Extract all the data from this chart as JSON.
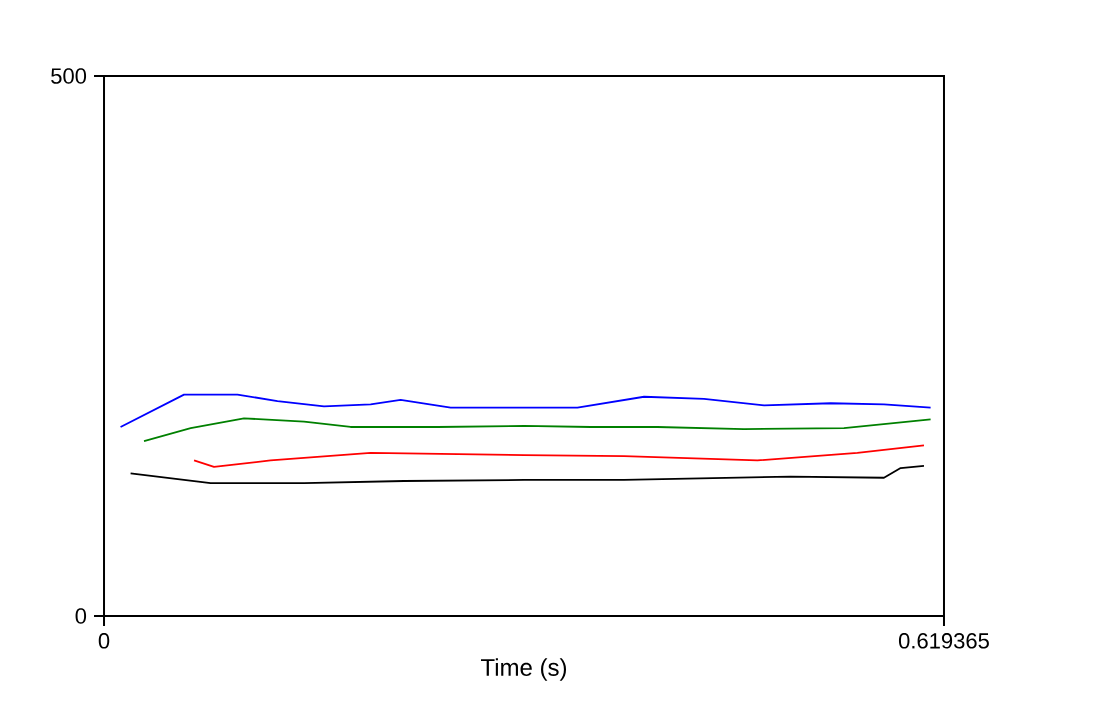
{
  "chart_data": {
    "type": "line",
    "xlabel": "Time (s)",
    "xlim": [
      0,
      0.619365
    ],
    "xticks": [
      0,
      0.619365
    ],
    "ylim": [
      0,
      500
    ],
    "yticks": [
      0,
      500
    ],
    "series": [
      {
        "color": "#0000ff",
        "x": [
          0.0122,
          0.059,
          0.0984,
          0.1279,
          0.1622,
          0.1966,
          0.2187,
          0.2556,
          0.3097,
          0.3491,
          0.3982,
          0.4424,
          0.4867,
          0.5358,
          0.5751,
          0.6095
        ],
        "values": [
          175,
          205,
          205,
          199,
          194,
          196,
          200,
          193,
          193,
          193,
          203,
          201,
          195,
          197,
          196,
          193
        ]
      },
      {
        "color": "#008000",
        "x": [
          0.0295,
          0.0639,
          0.1032,
          0.1475,
          0.1818,
          0.2458,
          0.3097,
          0.3588,
          0.408,
          0.4719,
          0.5456,
          0.6095
        ],
        "values": [
          162,
          174,
          183,
          180,
          175,
          175,
          176,
          175,
          175,
          173,
          174,
          182
        ]
      },
      {
        "color": "#ff0000",
        "x": [
          0.0664,
          0.0811,
          0.1228,
          0.1966,
          0.3097,
          0.3834,
          0.4818,
          0.5555,
          0.6046
        ],
        "values": [
          144,
          138,
          144,
          151,
          149,
          148,
          144,
          151,
          158
        ]
      },
      {
        "color": "#000000",
        "x": [
          0.0196,
          0.0786,
          0.1475,
          0.2212,
          0.3097,
          0.3834,
          0.5063,
          0.5751,
          0.5874,
          0.6046
        ],
        "values": [
          132,
          123,
          123,
          125,
          126,
          126,
          129,
          128,
          137,
          139
        ]
      }
    ]
  }
}
